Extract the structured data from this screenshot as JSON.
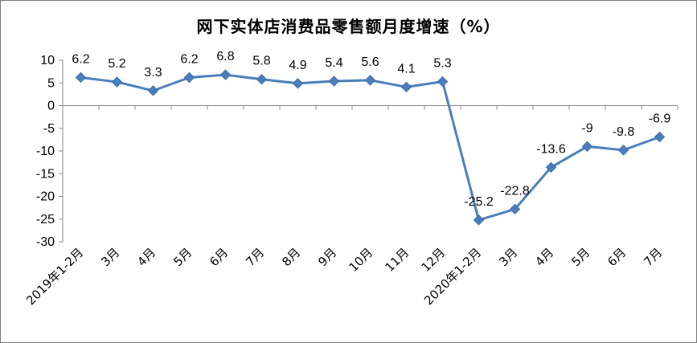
{
  "chart_data": {
    "type": "line",
    "title": "网下实体店消费品零售额月度增速（%）",
    "xlabel": "",
    "ylabel": "",
    "categories": [
      "2019年1-2月",
      "3月",
      "4月",
      "5月",
      "6月",
      "7月",
      "8月",
      "9月",
      "10月",
      "11月",
      "12月",
      "2020年1-2月",
      "3月",
      "4月",
      "5月",
      "6月",
      "7月"
    ],
    "series": [
      {
        "values": [
          6.2,
          5.2,
          3.3,
          6.2,
          6.8,
          5.8,
          4.9,
          5.4,
          5.6,
          4.1,
          5.3,
          -25.2,
          -22.8,
          -13.6,
          -9,
          -9.8,
          -6.9
        ]
      }
    ],
    "data_labels": [
      "6.2",
      "5.2",
      "3.3",
      "6.2",
      "6.8",
      "5.8",
      "4.9",
      "5.4",
      "5.6",
      "4.1",
      "5.3",
      "-25.2",
      "-22.8",
      "-13.6",
      "-9",
      "-9.8",
      "-6.9"
    ],
    "y_ticks": [
      "10",
      "5",
      "0",
      "-5",
      "-10",
      "-15",
      "-20",
      "-25",
      "-30"
    ],
    "ylim": [
      -30,
      10
    ],
    "grid": false,
    "legend": "none",
    "colors": {
      "line": "#4a7ebb",
      "axis": "#868686"
    }
  }
}
